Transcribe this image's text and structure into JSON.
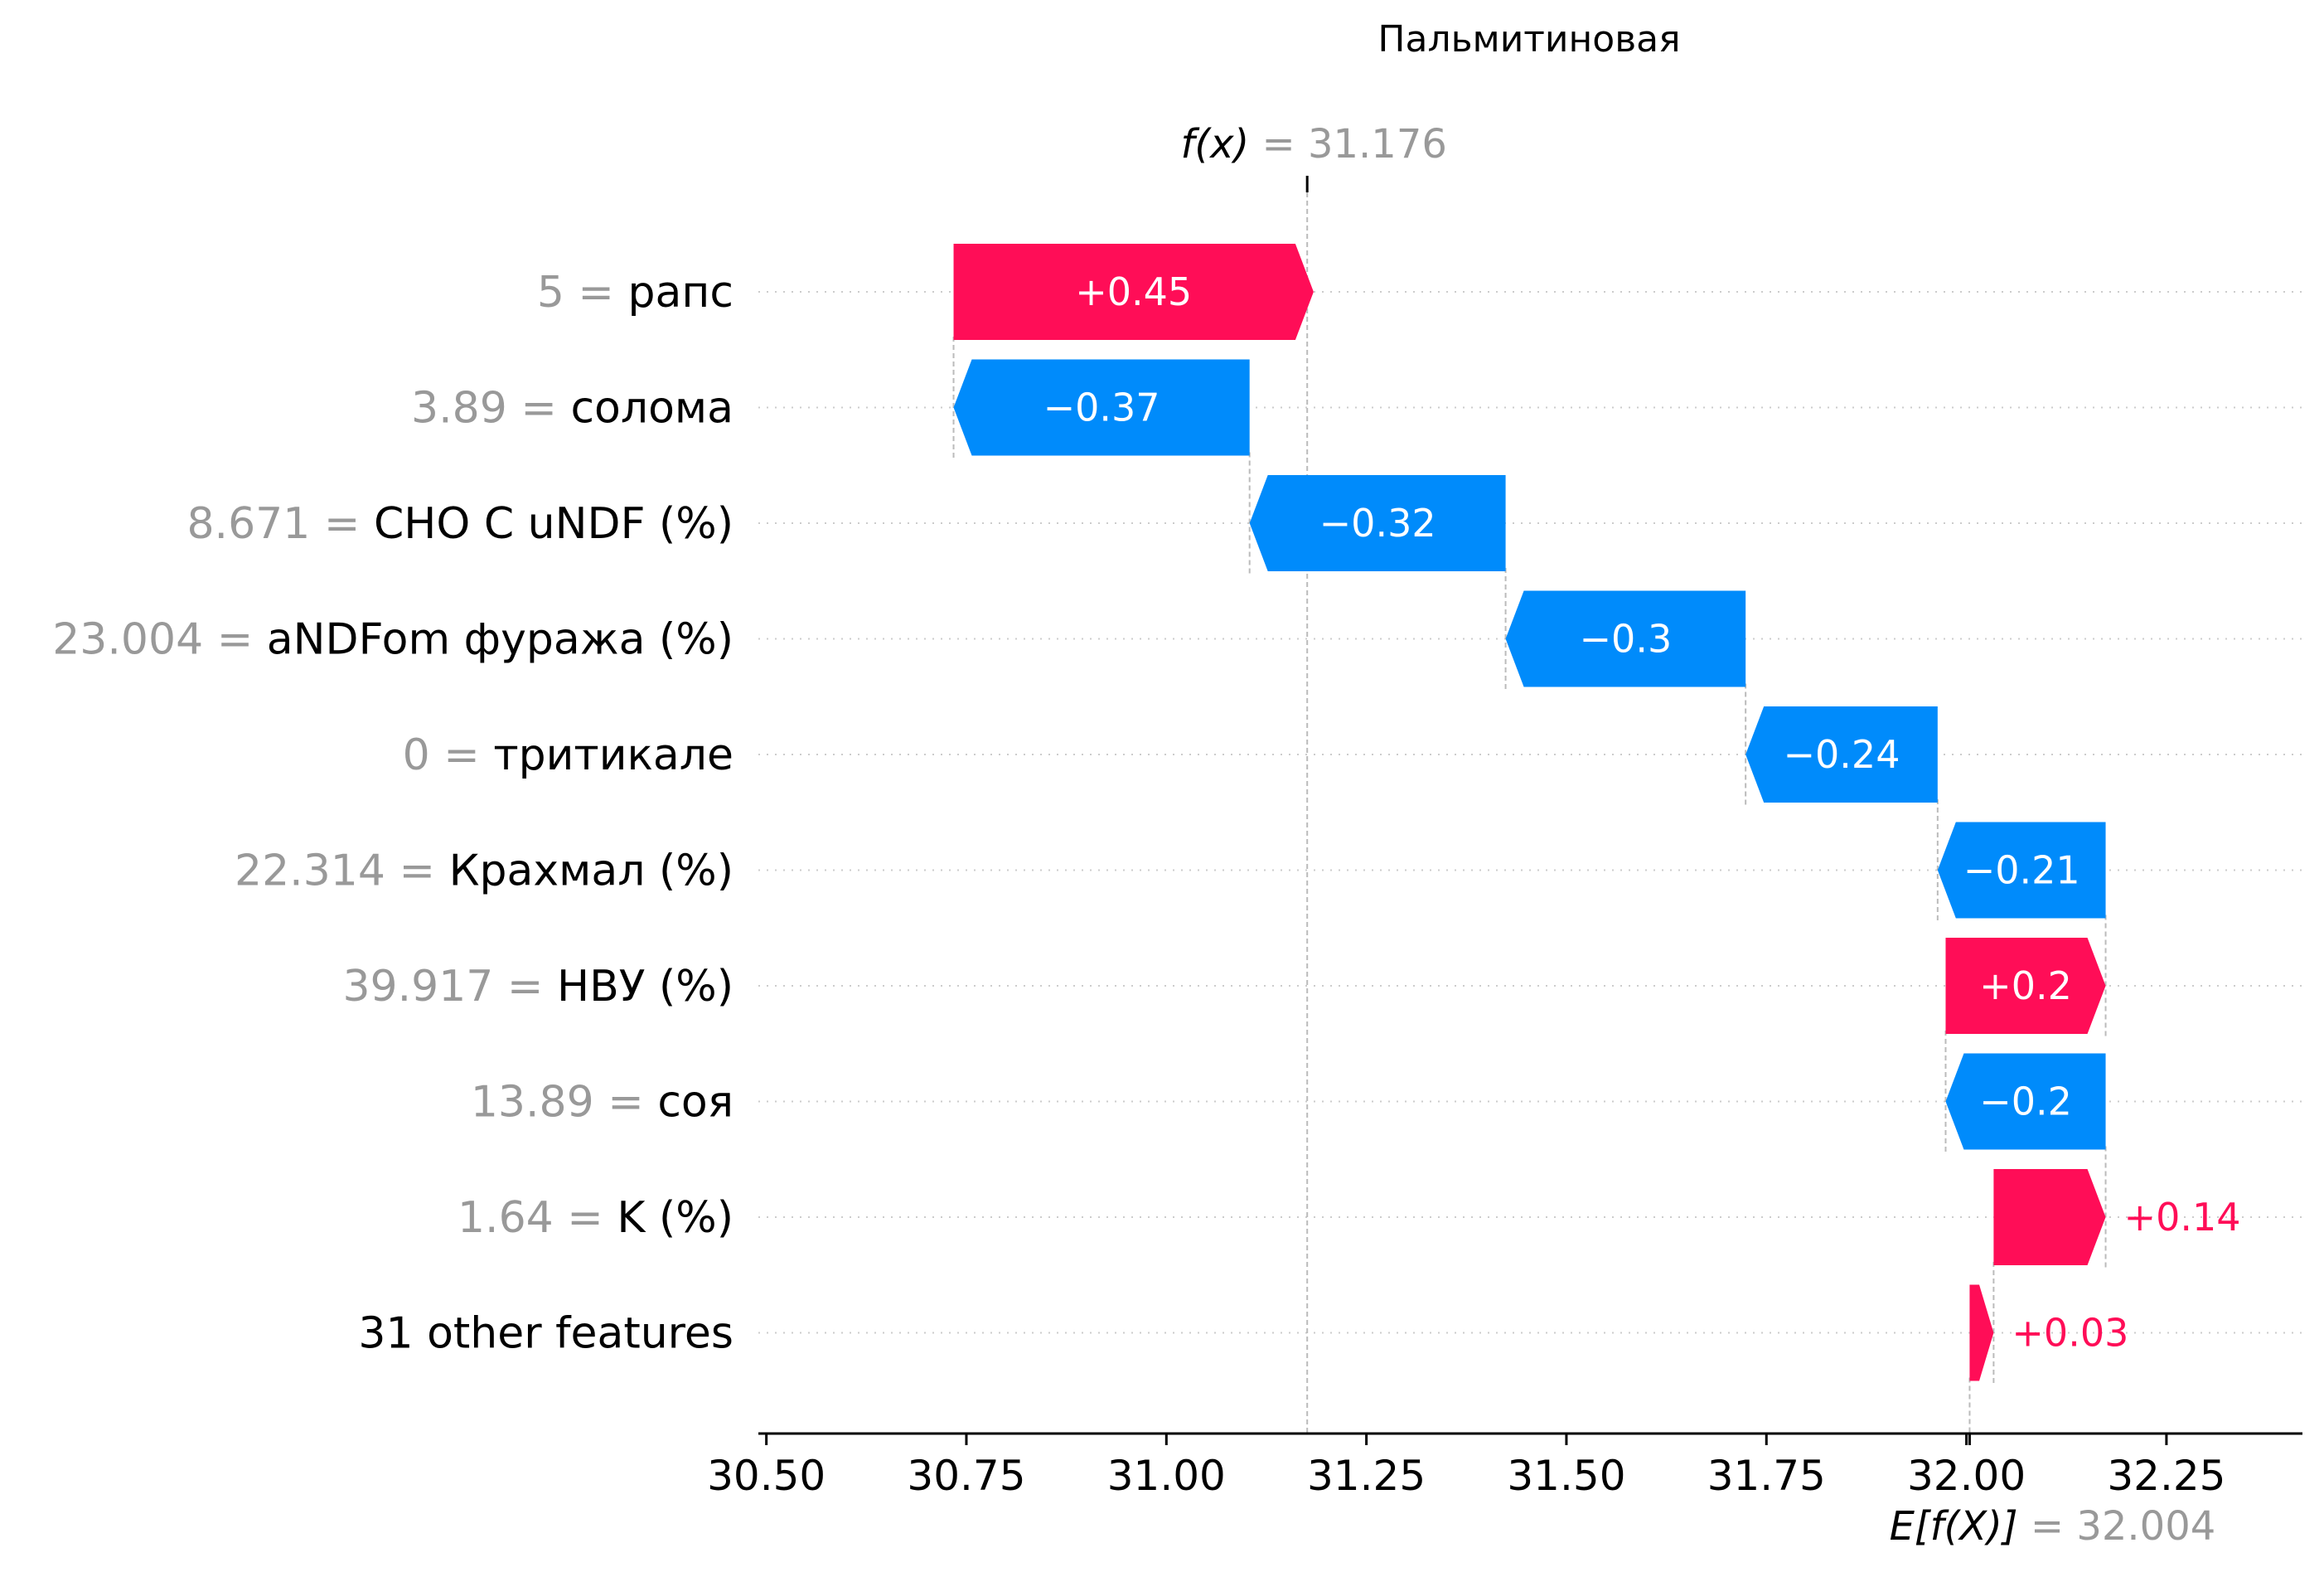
{
  "chart_data": {
    "type": "waterfall",
    "title": "Пальмитиновая",
    "base_value": 32.004,
    "output_value": 31.176,
    "fx_label": "f(x)",
    "fx_text": "= 31.176",
    "efx_label": "E[f(X)]",
    "efx_text": "= 32.004",
    "xlim": [
      30.49,
      32.42
    ],
    "xticks": [
      30.5,
      30.75,
      31.0,
      31.25,
      31.5,
      31.75,
      32.0,
      32.25
    ],
    "xtick_labels": [
      "30.50",
      "30.75",
      "31.00",
      "31.25",
      "31.50",
      "31.75",
      "32.00",
      "32.25"
    ],
    "features": [
      {
        "value": "5",
        "name": "рапс",
        "shap": 0.45,
        "label": "+0.45"
      },
      {
        "value": "3.89",
        "name": "солома",
        "shap": -0.37,
        "label": "−0.37"
      },
      {
        "value": "8.671",
        "name": "CHO C uNDF (%)",
        "shap": -0.32,
        "label": "−0.32"
      },
      {
        "value": "23.004",
        "name": "aNDFom фуража (%)",
        "shap": -0.3,
        "label": "−0.3"
      },
      {
        "value": "0",
        "name": "тритикале",
        "shap": -0.24,
        "label": "−0.24"
      },
      {
        "value": "22.314",
        "name": "Крахмал (%)",
        "shap": -0.21,
        "label": "−0.21"
      },
      {
        "value": "39.917",
        "name": "НВУ (%)",
        "shap": 0.2,
        "label": "+0.2"
      },
      {
        "value": "13.89",
        "name": "соя",
        "shap": -0.2,
        "label": "−0.2"
      },
      {
        "value": "1.64",
        "name": "K (%)",
        "shap": 0.14,
        "label": "+0.14"
      },
      {
        "value": "",
        "name": "31 other features",
        "shap": 0.03,
        "label": "+0.03"
      }
    ],
    "colors": {
      "positive": "#ff0d57",
      "negative": "#008bfb",
      "muted": "#999999",
      "axis": "#000000"
    }
  }
}
